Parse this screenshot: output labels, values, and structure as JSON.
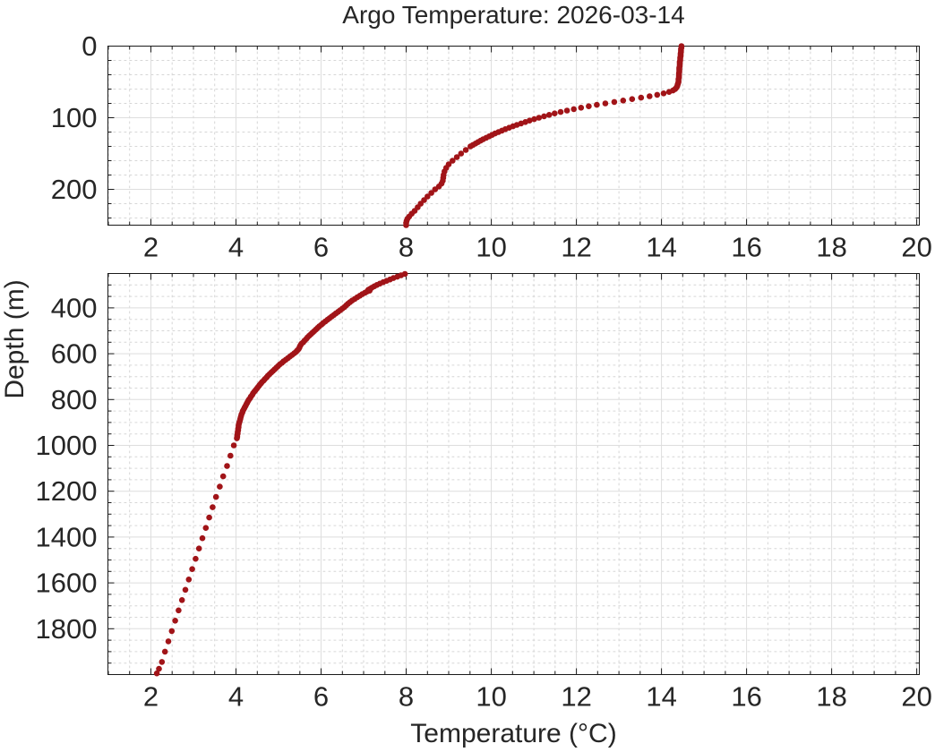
{
  "figure": {
    "title": "Argo Temperature: 2026-03-14",
    "xlabel": "Temperature (°C)",
    "ylabel": "Depth (m)"
  },
  "chart_data": {
    "type": "scatter",
    "title": "Argo Temperature: 2026-03-14",
    "xlabel": "Temperature (°C)",
    "ylabel": "Depth (m)",
    "marker": "filled-circle",
    "marker_color": "#a11418",
    "axis_color": "#1a1a1a",
    "grid_major_color": "#dedede",
    "grid_minor_color": "#d6d6d6",
    "grid": "on",
    "minor_grid": "on",
    "xlim": [
      0.99,
      20.06
    ],
    "x_ticks": [
      2,
      4,
      6,
      8,
      10,
      12,
      14,
      16,
      18,
      20
    ],
    "x_minor_step": 0.5,
    "subplots": [
      {
        "name": "upper-profile",
        "ylim": [
          0,
          250
        ],
        "y_ticks": [
          0,
          100,
          200
        ],
        "y_minor_step": 20,
        "y_direction": "down",
        "points": [
          [
            14.47,
            0
          ],
          [
            14.47,
            2
          ],
          [
            14.46,
            4
          ],
          [
            14.46,
            6
          ],
          [
            14.46,
            8
          ],
          [
            14.45,
            10
          ],
          [
            14.45,
            12
          ],
          [
            14.45,
            14
          ],
          [
            14.44,
            16
          ],
          [
            14.44,
            18
          ],
          [
            14.44,
            20
          ],
          [
            14.43,
            22
          ],
          [
            14.43,
            24
          ],
          [
            14.43,
            26
          ],
          [
            14.43,
            28
          ],
          [
            14.42,
            30
          ],
          [
            14.42,
            32
          ],
          [
            14.42,
            34
          ],
          [
            14.42,
            36
          ],
          [
            14.41,
            38
          ],
          [
            14.41,
            40
          ],
          [
            14.41,
            42
          ],
          [
            14.41,
            44
          ],
          [
            14.4,
            46
          ],
          [
            14.4,
            48
          ],
          [
            14.4,
            50
          ],
          [
            14.39,
            52
          ],
          [
            14.38,
            54
          ],
          [
            14.37,
            56
          ],
          [
            14.35,
            58
          ],
          [
            14.32,
            60
          ],
          [
            14.27,
            62
          ],
          [
            14.18,
            64
          ],
          [
            14.05,
            66
          ],
          [
            13.9,
            68
          ],
          [
            13.72,
            70
          ],
          [
            13.52,
            72
          ],
          [
            13.31,
            74
          ],
          [
            13.1,
            76
          ],
          [
            12.89,
            78
          ],
          [
            12.68,
            80
          ],
          [
            12.48,
            82
          ],
          [
            12.29,
            84
          ],
          [
            12.11,
            86
          ],
          [
            11.94,
            88
          ],
          [
            11.78,
            90
          ],
          [
            11.63,
            92
          ],
          [
            11.49,
            94
          ],
          [
            11.36,
            96
          ],
          [
            11.24,
            98
          ],
          [
            11.12,
            100
          ],
          [
            11.01,
            102
          ],
          [
            10.9,
            104
          ],
          [
            10.8,
            106
          ],
          [
            10.7,
            108
          ],
          [
            10.6,
            110
          ],
          [
            10.51,
            112
          ],
          [
            10.42,
            114
          ],
          [
            10.33,
            116
          ],
          [
            10.25,
            118
          ],
          [
            10.17,
            120
          ],
          [
            10.09,
            122
          ],
          [
            10.02,
            124
          ],
          [
            9.95,
            126
          ],
          [
            9.88,
            128
          ],
          [
            9.81,
            130
          ],
          [
            9.75,
            132
          ],
          [
            9.69,
            134
          ],
          [
            9.63,
            136
          ],
          [
            9.57,
            138
          ],
          [
            9.51,
            140
          ],
          [
            9.4,
            145
          ],
          [
            9.29,
            150
          ],
          [
            9.19,
            155
          ],
          [
            9.09,
            160
          ],
          [
            9.0,
            165
          ],
          [
            8.94,
            170
          ],
          [
            8.9,
            175
          ],
          [
            8.88,
            180
          ],
          [
            8.87,
            184
          ],
          [
            8.86,
            188
          ],
          [
            8.83,
            192
          ],
          [
            8.77,
            196
          ],
          [
            8.68,
            200
          ],
          [
            8.59,
            205
          ],
          [
            8.5,
            210
          ],
          [
            8.42,
            215
          ],
          [
            8.34,
            220
          ],
          [
            8.27,
            225
          ],
          [
            8.2,
            230
          ],
          [
            8.13,
            234
          ],
          [
            8.07,
            238
          ],
          [
            8.03,
            241
          ],
          [
            8.01,
            244
          ],
          [
            8.0,
            247
          ],
          [
            8.0,
            250
          ]
        ]
      },
      {
        "name": "lower-profile",
        "ylim": [
          250,
          2000
        ],
        "y_ticks": [
          400,
          600,
          800,
          1000,
          1200,
          1400,
          1600,
          1800
        ],
        "y_minor_step": 50,
        "y_direction": "down",
        "points": [
          [
            7.97,
            252
          ],
          [
            7.88,
            258
          ],
          [
            7.79,
            264
          ],
          [
            7.7,
            270
          ],
          [
            7.62,
            276
          ],
          [
            7.54,
            282
          ],
          [
            7.46,
            288
          ],
          [
            7.38,
            294
          ],
          [
            7.31,
            300
          ],
          [
            7.25,
            306
          ],
          [
            7.19,
            312
          ],
          [
            7.15,
            317
          ],
          [
            7.11,
            321
          ],
          [
            7.14,
            325
          ],
          [
            7.08,
            329
          ],
          [
            7.03,
            334
          ],
          [
            6.97,
            340
          ],
          [
            6.91,
            347
          ],
          [
            6.85,
            354
          ],
          [
            6.79,
            361
          ],
          [
            6.73,
            368
          ],
          [
            6.68,
            375
          ],
          [
            6.63,
            382
          ],
          [
            6.59,
            389
          ],
          [
            6.55,
            396
          ],
          [
            6.5,
            403
          ],
          [
            6.45,
            410
          ],
          [
            6.4,
            417
          ],
          [
            6.35,
            424
          ],
          [
            6.3,
            431
          ],
          [
            6.25,
            438
          ],
          [
            6.2,
            445
          ],
          [
            6.15,
            452
          ],
          [
            6.1,
            459
          ],
          [
            6.05,
            466
          ],
          [
            6.01,
            473
          ],
          [
            5.96,
            480
          ],
          [
            5.92,
            487
          ],
          [
            5.88,
            494
          ],
          [
            5.84,
            501
          ],
          [
            5.8,
            508
          ],
          [
            5.76,
            515
          ],
          [
            5.72,
            522
          ],
          [
            5.68,
            529
          ],
          [
            5.65,
            536
          ],
          [
            5.61,
            543
          ],
          [
            5.58,
            550
          ],
          [
            5.54,
            556
          ],
          [
            5.52,
            562
          ],
          [
            5.5,
            568
          ],
          [
            5.49,
            574
          ],
          [
            5.47,
            580
          ],
          [
            5.44,
            586
          ],
          [
            5.41,
            592
          ],
          [
            5.37,
            598
          ],
          [
            5.32,
            605
          ],
          [
            5.27,
            612
          ],
          [
            5.22,
            619
          ],
          [
            5.17,
            626
          ],
          [
            5.12,
            633
          ],
          [
            5.08,
            640
          ],
          [
            5.03,
            647
          ],
          [
            4.99,
            654
          ],
          [
            4.95,
            661
          ],
          [
            4.91,
            668
          ],
          [
            4.87,
            675
          ],
          [
            4.83,
            682
          ],
          [
            4.79,
            689
          ],
          [
            4.75,
            696
          ],
          [
            4.72,
            703
          ],
          [
            4.68,
            710
          ],
          [
            4.65,
            717
          ],
          [
            4.61,
            724
          ],
          [
            4.58,
            731
          ],
          [
            4.55,
            738
          ],
          [
            4.52,
            745
          ],
          [
            4.49,
            752
          ],
          [
            4.46,
            759
          ],
          [
            4.43,
            766
          ],
          [
            4.4,
            773
          ],
          [
            4.38,
            780
          ],
          [
            4.35,
            787
          ],
          [
            4.33,
            794
          ],
          [
            4.3,
            801
          ],
          [
            4.28,
            808
          ],
          [
            4.26,
            815
          ],
          [
            4.24,
            822
          ],
          [
            4.22,
            829
          ],
          [
            4.2,
            836
          ],
          [
            4.18,
            843
          ],
          [
            4.16,
            850
          ],
          [
            4.15,
            857
          ],
          [
            4.13,
            864
          ],
          [
            4.12,
            871
          ],
          [
            4.11,
            878
          ],
          [
            4.1,
            885
          ],
          [
            4.09,
            892
          ],
          [
            4.08,
            899
          ],
          [
            4.07,
            906
          ],
          [
            4.06,
            913
          ],
          [
            4.06,
            920
          ],
          [
            4.05,
            927
          ],
          [
            4.05,
            934
          ],
          [
            4.04,
            941
          ],
          [
            4.04,
            948
          ],
          [
            4.03,
            955
          ],
          [
            4.03,
            962
          ],
          [
            4.02,
            969
          ],
          [
            3.95,
            1000
          ],
          [
            3.87,
            1045
          ],
          [
            3.79,
            1090
          ],
          [
            3.7,
            1135
          ],
          [
            3.62,
            1180
          ],
          [
            3.53,
            1225
          ],
          [
            3.45,
            1270
          ],
          [
            3.37,
            1315
          ],
          [
            3.29,
            1360
          ],
          [
            3.21,
            1405
          ],
          [
            3.13,
            1450
          ],
          [
            3.05,
            1495
          ],
          [
            2.97,
            1540
          ],
          [
            2.89,
            1585
          ],
          [
            2.81,
            1630
          ],
          [
            2.73,
            1675
          ],
          [
            2.65,
            1720
          ],
          [
            2.57,
            1765
          ],
          [
            2.49,
            1810
          ],
          [
            2.41,
            1855
          ],
          [
            2.33,
            1900
          ],
          [
            2.26,
            1945
          ],
          [
            2.19,
            1975
          ],
          [
            2.14,
            1995
          ]
        ]
      }
    ]
  }
}
